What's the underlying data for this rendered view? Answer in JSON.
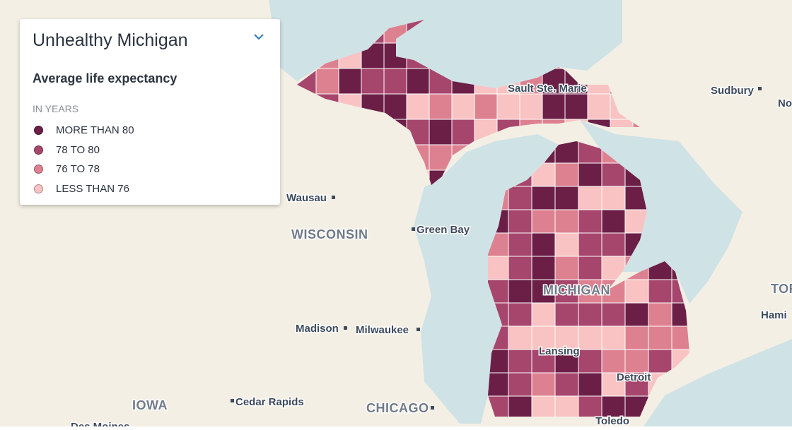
{
  "legend": {
    "title": "Unhealthy Michigan",
    "subtitle": "Average life expectancy",
    "unit": "IN YEARS",
    "items": [
      {
        "label": "MORE THAN 80",
        "color": "#6b1f47"
      },
      {
        "label": "78 TO 80",
        "color": "#a7466c"
      },
      {
        "label": "76 TO 78",
        "color": "#dd8190"
      },
      {
        "label": "LESS THAN 76",
        "color": "#f8c3c2"
      }
    ]
  },
  "map_labels": {
    "sault": "Sault Ste. Marie",
    "sudbury": "Sudbury",
    "no": "No",
    "wausau": "Wausau",
    "wisconsin": "WISCONSIN",
    "green_bay": "Green Bay",
    "michigan": "MICHIGAN",
    "tor": "TOR",
    "hami": "Hami",
    "madison": "Madison",
    "milwaukee": "Milwaukee",
    "lansing": "Lansing",
    "detroit": "Detroit",
    "iowa": "IOWA",
    "cedar_rapids": "Cedar Rapids",
    "chicago": "CHICAGO",
    "toledo": "Toledo",
    "des_moines": "Des Moines"
  }
}
